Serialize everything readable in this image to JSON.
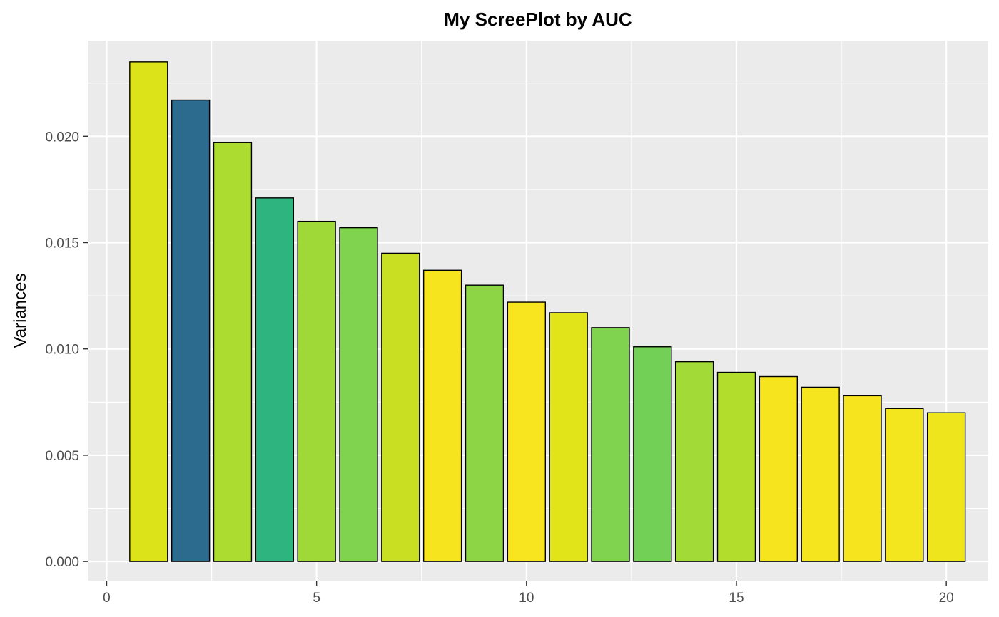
{
  "chart_data": {
    "type": "bar",
    "title": "My ScreePlot by AUC",
    "xlabel": "",
    "ylabel": "Variances",
    "x": [
      1,
      2,
      3,
      4,
      5,
      6,
      7,
      8,
      9,
      10,
      11,
      12,
      13,
      14,
      15,
      16,
      17,
      18,
      19,
      20
    ],
    "values": [
      0.0235,
      0.0217,
      0.0197,
      0.0171,
      0.016,
      0.0157,
      0.0145,
      0.0137,
      0.013,
      0.0122,
      0.0117,
      0.011,
      0.0101,
      0.0094,
      0.0089,
      0.0087,
      0.0082,
      0.0078,
      0.0072,
      0.007
    ],
    "bar_colors": [
      "#dce319",
      "#2d6b8e",
      "#addc30",
      "#2db47f",
      "#9fd938",
      "#7fd34e",
      "#c9df22",
      "#f6e51e",
      "#8dd544",
      "#f8e51f",
      "#e0e418",
      "#80d34e",
      "#73d056",
      "#a2da37",
      "#b2dd2d",
      "#f6e51e",
      "#f4e51e",
      "#f6e51e",
      "#f3e51e",
      "#efe51c"
    ],
    "bar_outline": "#000000",
    "xlim": [
      -0.45,
      21.0
    ],
    "ylim": [
      -0.0009,
      0.0245
    ],
    "x_ticks": [
      0,
      5,
      10,
      15,
      20
    ],
    "x_tick_labels": [
      "0",
      "5",
      "10",
      "15",
      "20"
    ],
    "y_ticks": [
      0.0,
      0.005,
      0.01,
      0.015,
      0.02
    ],
    "y_tick_labels": [
      "0.000",
      "0.005",
      "0.010",
      "0.015",
      "0.020"
    ],
    "grid": true,
    "panel_background": "#ebebeb",
    "grid_color": "#ffffff",
    "legend": "none"
  }
}
